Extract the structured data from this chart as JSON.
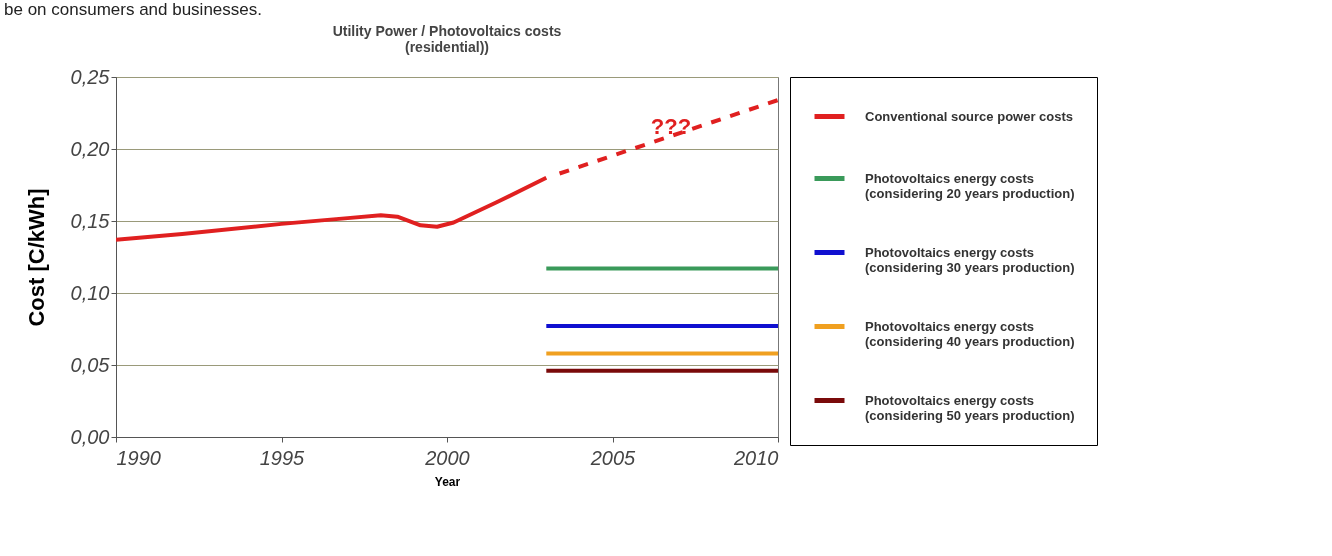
{
  "chart_data": {
    "type": "line",
    "title": "Utility Power / Photovoltaics costs (residential))",
    "xlabel": "Year",
    "ylabel": "Cost    [C/kWh]",
    "annotations": [
      "be on consumers and businesses.",
      "???"
    ],
    "xlim": [
      1990,
      2010
    ],
    "xticks": [
      1990,
      1995,
      2000,
      2005,
      2010
    ],
    "ylim": [
      0,
      0.25
    ],
    "yticks": [
      {
        "value": 0,
        "label": "0,00"
      },
      {
        "value": 0.05,
        "label": "0,05"
      },
      {
        "value": 0.1,
        "label": "0,10"
      },
      {
        "value": 0.15,
        "label": "0,15"
      },
      {
        "value": 0.2,
        "label": "0,20"
      },
      {
        "value": 0.25,
        "label": "0,25"
      }
    ],
    "grid": "y",
    "legend": "right",
    "series": [
      {
        "name": "Conventional source power costs",
        "color": "#e02020",
        "x": [
          1990,
          1992,
          1995,
          1997,
          1998,
          1998.5,
          1999.2,
          1999.7,
          2000.2,
          2001.5,
          2003
        ],
        "values": [
          0.137,
          0.141,
          0.148,
          0.152,
          0.154,
          0.153,
          0.147,
          0.146,
          0.149,
          0.163,
          0.18
        ]
      },
      {
        "color": "#e02020",
        "line_style": "dashed",
        "x": [
          2003.4,
          2010
        ],
        "values": [
          0.183,
          0.234
        ]
      },
      {
        "name": "Photovoltaics energy costs (considering 20 years production)",
        "color": "#3a9a5a",
        "x": [
          2003,
          2010
        ],
        "values": [
          0.117,
          0.117
        ]
      },
      {
        "name": "Photovoltaics energy costs (considering 30 years production)",
        "color": "#1010d0",
        "x": [
          2003,
          2010
        ],
        "values": [
          0.077,
          0.077
        ]
      },
      {
        "name": "Photovoltaics energy costs (considering 40 years production)",
        "color": "#f0a020",
        "x": [
          2003,
          2010
        ],
        "values": [
          0.058,
          0.058
        ]
      },
      {
        "name": "Photovoltaics energy costs (considering 50 years production)",
        "color": "#7a0a0a",
        "x": [
          2003,
          2010
        ],
        "values": [
          0.046,
          0.046
        ]
      }
    ]
  }
}
